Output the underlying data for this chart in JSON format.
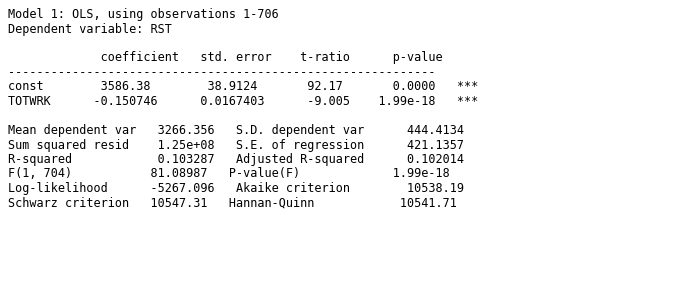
{
  "header_line1": "Model 1: OLS, using observations 1-706",
  "header_line2": "Dependent variable: RST",
  "separator": "------------------------------------------------------------",
  "col_header_row": "             coefficient   std. error    t-ratio      p-value",
  "data_rows": [
    "const        3586.38        38.9124       92.17       0.0000   ***",
    "TOTWRK      -0.150746      0.0167403      -9.005    1.99e-18   ***"
  ],
  "stats_lines": [
    "Mean dependent var   3266.356   S.D. dependent var      444.4134",
    "Sum squared resid    1.25e+08   S.E. of regression      421.1357",
    "R-squared            0.103287   Adjusted R-squared      0.102014",
    "F(1, 704)           81.08987   P-value(F)             1.99e-18",
    "Log-likelihood      -5267.096   Akaike criterion        10538.19",
    "Schwarz criterion   10547.31   Hannan-Quinn            10541.71"
  ],
  "bg_color": "#ffffff",
  "text_color": "#000000",
  "font_size": 8.5
}
